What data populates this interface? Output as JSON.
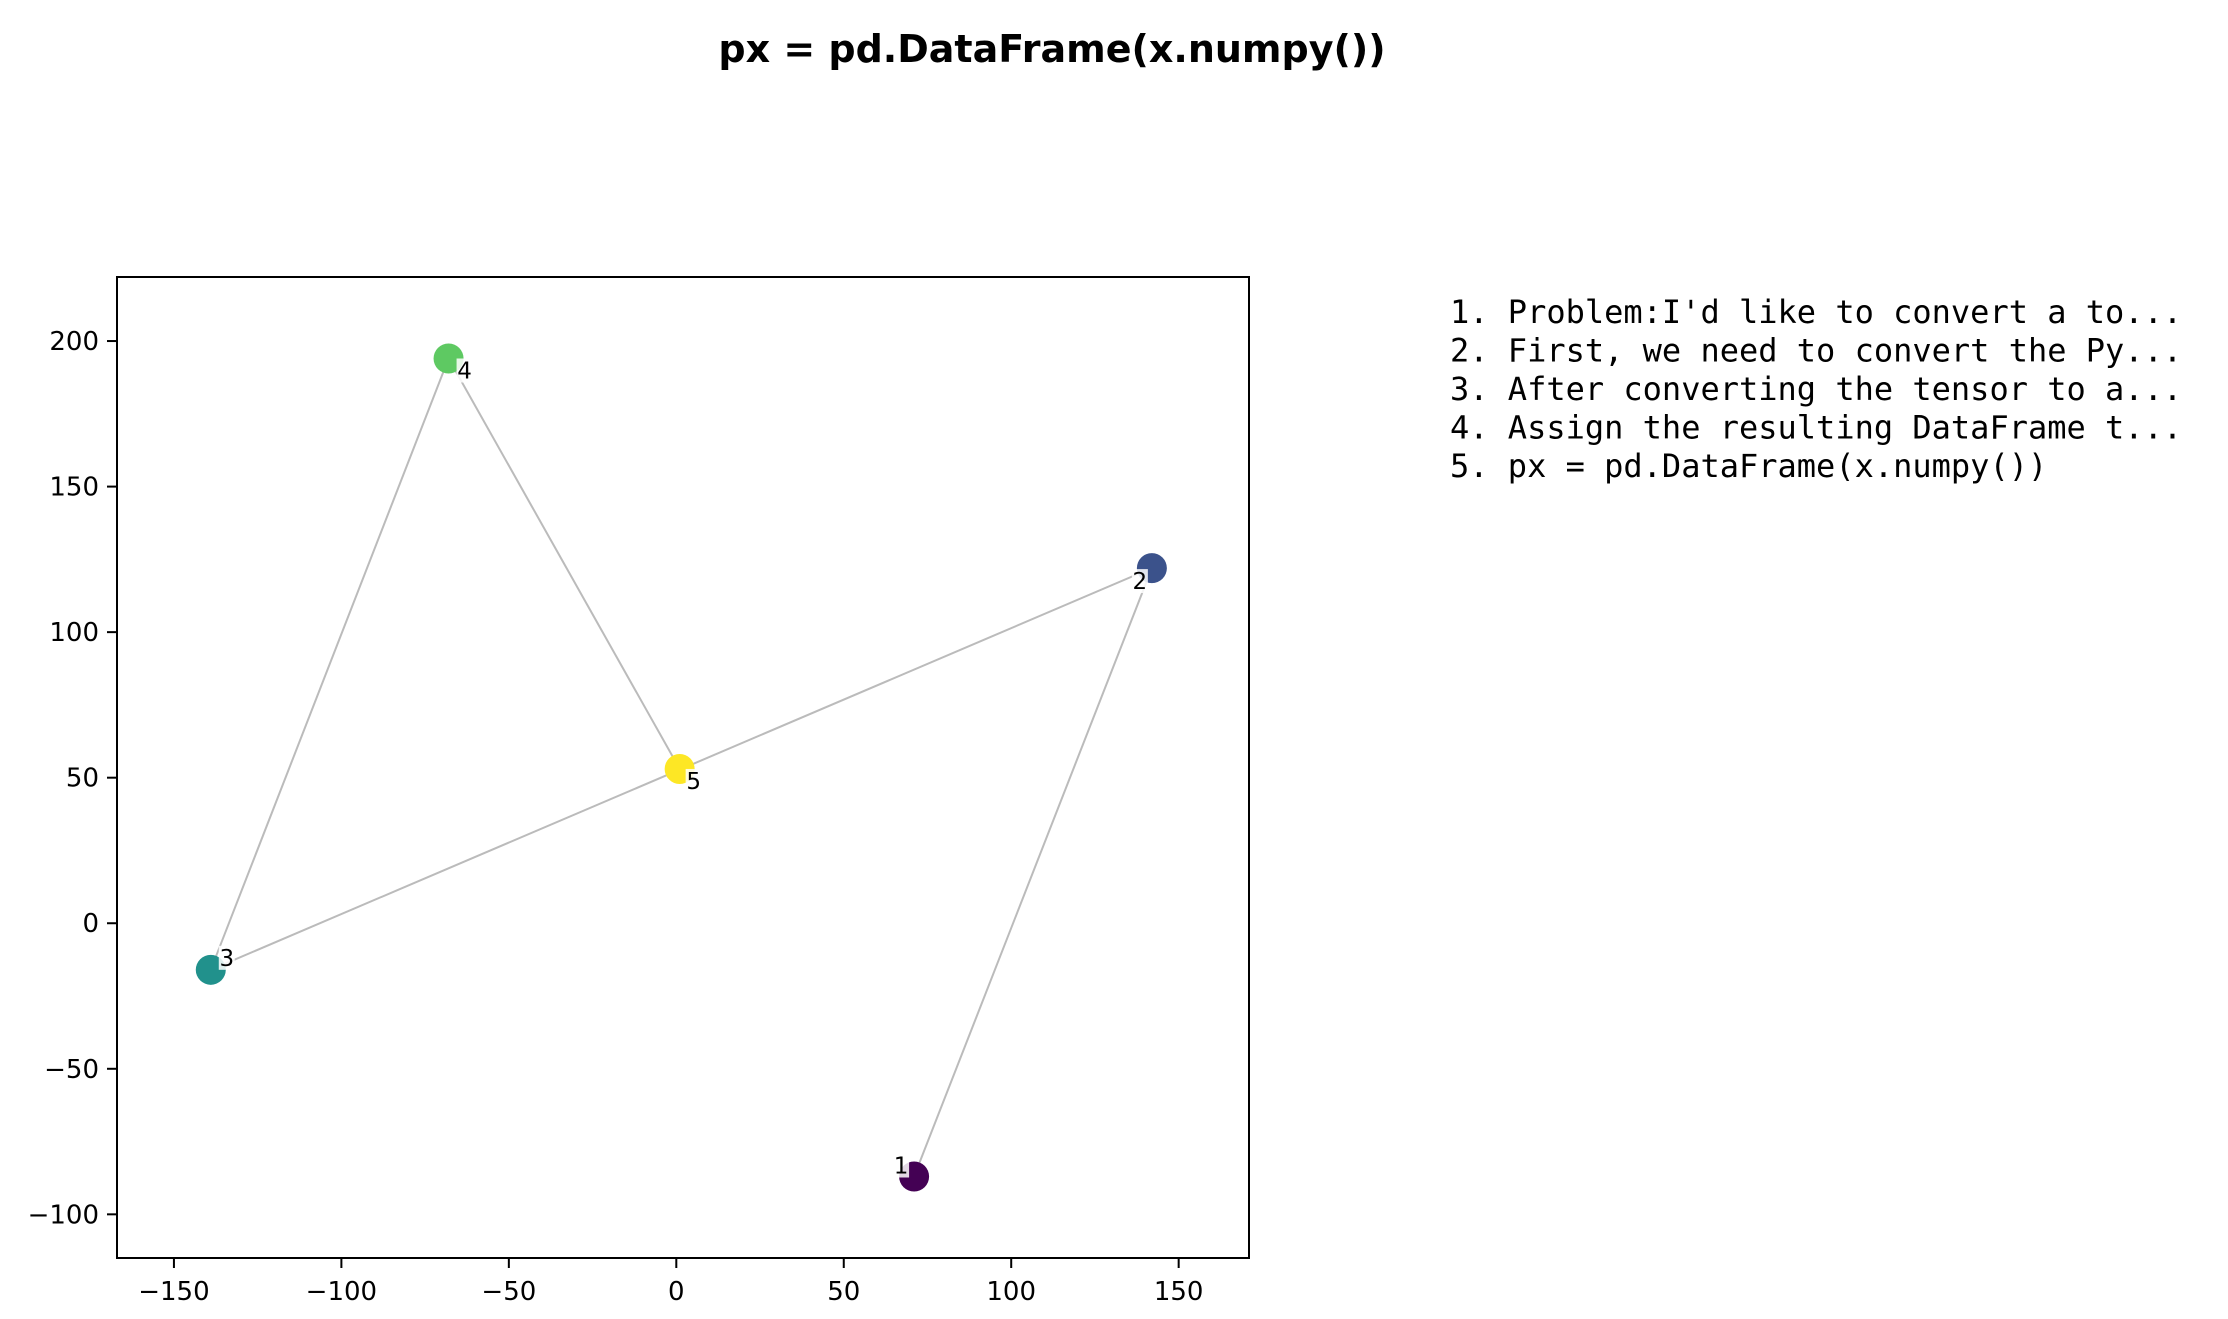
{
  "chart_data": {
    "type": "scatter",
    "title": "px = pd.DataFrame(x.numpy())",
    "xlabel": "",
    "ylabel": "",
    "xlim": [
      -167,
      171
    ],
    "ylim": [
      -115,
      222
    ],
    "xticks": [
      -150,
      -100,
      -50,
      0,
      50,
      100,
      150
    ],
    "yticks": [
      -100,
      -50,
      0,
      50,
      100,
      150,
      200
    ],
    "xtick_labels": [
      "−150",
      "−100",
      "−50",
      "0",
      "50",
      "100",
      "150"
    ],
    "ytick_labels": [
      "−100",
      "−50",
      "0",
      "50",
      "100",
      "150",
      "200"
    ],
    "grid": false,
    "points": [
      {
        "label": "1",
        "x": 71,
        "y": -87,
        "color": "#440154"
      },
      {
        "label": "2",
        "x": 142,
        "y": 122,
        "color": "#3b528b"
      },
      {
        "label": "3",
        "x": -139,
        "y": -16,
        "color": "#21918c"
      },
      {
        "label": "4",
        "x": -68,
        "y": 194,
        "color": "#5ec962"
      },
      {
        "label": "5",
        "x": 1,
        "y": 53,
        "color": "#fde725"
      }
    ],
    "path_order": [
      "1",
      "2",
      "3",
      "4",
      "5"
    ],
    "line_color": "#bbbbbb",
    "legend": {
      "placement": "right",
      "lines": [
        "1. Problem:I'd like to convert a to...",
        "2. First, we need to convert the Py...",
        "3. After converting the tensor to a...",
        "4. Assign the resulting DataFrame t...",
        "5. px = pd.DataFrame(x.numpy())"
      ]
    }
  }
}
